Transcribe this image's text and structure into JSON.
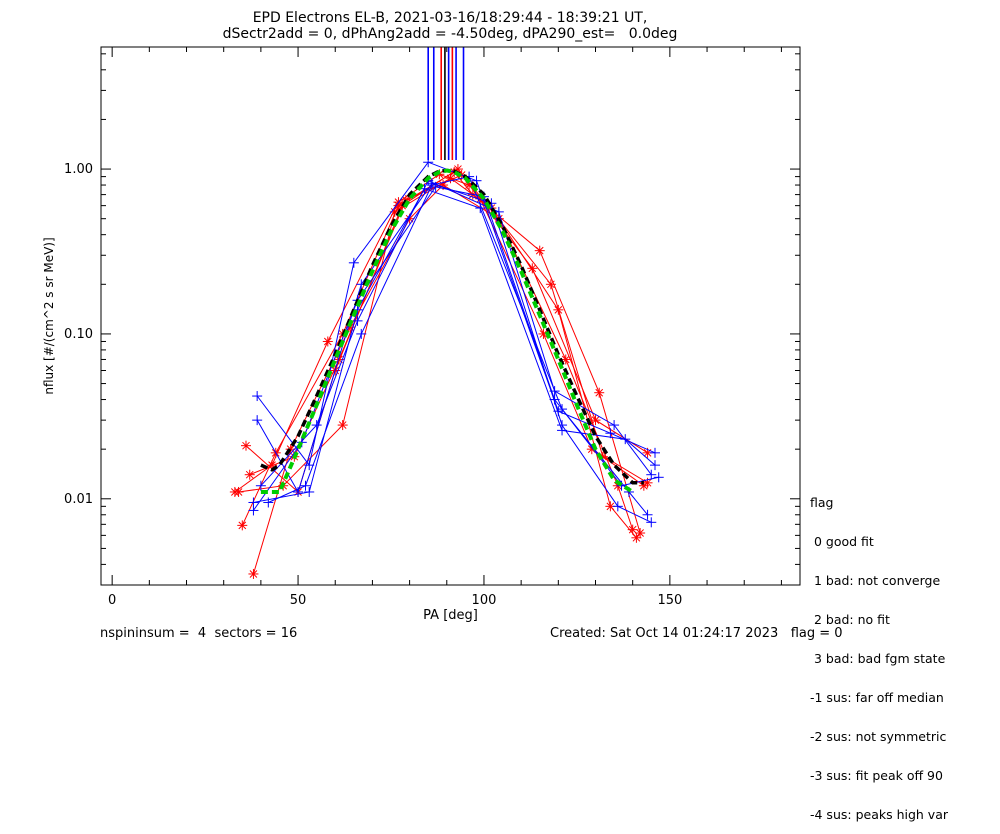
{
  "title_line1": "EPD Electrons EL-B, 2021-03-16/18:29:44 - 18:39:21 UT,",
  "title_line2": "dSectr2add = 0, dPhAng2add = -4.50deg, dPA290_est=   0.0deg",
  "footer": {
    "left": "nspininsum =  4  sectors = 16",
    "right": "Created: Sat Oct 14 01:24:17 2023   flag = 0"
  },
  "legend": {
    "title": "flag",
    "items": [
      " 0 good fit",
      " 1 bad: not converge",
      " 2 bad: no fit",
      " 3 bad: bad fgm state",
      "-1 sus: far off median",
      "-2 sus: not symmetric",
      "-3 sus: fit peak off 90",
      "-4 sus: peaks high var"
    ]
  },
  "colors": {
    "red": "#ff0000",
    "blue": "#0000ff",
    "black": "#000000",
    "green": "#00cc00"
  },
  "chart_data": {
    "type": "line",
    "xlabel": "PA [deg]",
    "ylabel": "nflux [#/(cm^2 s sr MeV)]",
    "xlim": [
      -3,
      185
    ],
    "ylim": [
      0.003,
      5.5
    ],
    "yscale": "log",
    "xticks": [
      0,
      50,
      100,
      150
    ],
    "yticks": [
      0.01,
      0.1,
      1.0
    ],
    "ytick_labels": [
      "0.01",
      "0.10",
      "1.00"
    ],
    "vlines": [
      {
        "x": 88.5,
        "color": "red"
      },
      {
        "x": 89.5,
        "color": "black"
      },
      {
        "x": 90.5,
        "color": "blue"
      },
      {
        "x": 91.5,
        "color": "red"
      },
      {
        "x": 92.5,
        "color": "blue"
      },
      {
        "x": 86.5,
        "color": "blue"
      },
      {
        "x": 94.5,
        "color": "blue"
      },
      {
        "x": 85,
        "color": "blue"
      }
    ],
    "series": [
      {
        "color": "red",
        "marker": "*",
        "x": [
          33,
          43,
          58,
          77,
          88,
          96,
          113,
          130,
          144
        ],
        "y": [
          0.011,
          0.016,
          0.09,
          0.63,
          0.93,
          0.8,
          0.25,
          0.03,
          0.019
        ]
      },
      {
        "color": "red",
        "marker": "*",
        "x": [
          35,
          44,
          62,
          77,
          92,
          97,
          115,
          131,
          142
        ],
        "y": [
          0.0069,
          0.019,
          0.1,
          0.6,
          0.96,
          0.7,
          0.32,
          0.044,
          0.0062
        ]
      },
      {
        "color": "red",
        "marker": "*",
        "x": [
          36,
          50,
          60,
          78,
          93,
          101,
          118,
          132,
          143
        ],
        "y": [
          0.021,
          0.011,
          0.06,
          0.6,
          1.0,
          0.6,
          0.2,
          0.018,
          0.012
        ]
      },
      {
        "color": "red",
        "marker": "*",
        "x": [
          34,
          46,
          62,
          76,
          91,
          102,
          120,
          134,
          141
        ],
        "y": [
          0.011,
          0.012,
          0.028,
          0.55,
          0.88,
          0.58,
          0.14,
          0.009,
          0.0058
        ]
      },
      {
        "color": "red",
        "marker": "*",
        "x": [
          38,
          48,
          64,
          80,
          89,
          104,
          122,
          136,
          140
        ],
        "y": [
          0.0035,
          0.02,
          0.11,
          0.5,
          0.8,
          0.5,
          0.07,
          0.012,
          0.0065
        ]
      },
      {
        "color": "red",
        "marker": "*",
        "x": [
          37,
          49,
          61,
          79,
          94,
          99,
          116,
          129,
          144
        ],
        "y": [
          0.014,
          0.018,
          0.07,
          0.65,
          0.92,
          0.66,
          0.1,
          0.02,
          0.0125
        ]
      },
      {
        "color": "blue",
        "marker": "+",
        "x": [
          39,
          53,
          65,
          85,
          98,
          120,
          134,
          146
        ],
        "y": [
          0.042,
          0.016,
          0.27,
          1.1,
          0.85,
          0.034,
          0.025,
          0.019
        ]
      },
      {
        "color": "blue",
        "marker": "+",
        "x": [
          39,
          50,
          67,
          86,
          102,
          121,
          136,
          145
        ],
        "y": [
          0.03,
          0.011,
          0.2,
          0.82,
          0.62,
          0.028,
          0.009,
          0.0072
        ]
      },
      {
        "color": "blue",
        "marker": "+",
        "x": [
          38,
          51,
          66,
          87,
          100,
          119,
          137,
          147
        ],
        "y": [
          0.0085,
          0.022,
          0.16,
          0.78,
          0.68,
          0.04,
          0.012,
          0.0135
        ]
      },
      {
        "color": "blue",
        "marker": "+",
        "x": [
          38,
          53,
          66,
          84,
          99,
          121,
          138,
          146
        ],
        "y": [
          0.0095,
          0.011,
          0.14,
          0.76,
          0.58,
          0.026,
          0.023,
          0.016
        ]
      },
      {
        "color": "blue",
        "marker": "+",
        "x": [
          40,
          55,
          66,
          85,
          104,
          119,
          135,
          145
        ],
        "y": [
          0.012,
          0.028,
          0.12,
          0.85,
          0.55,
          0.045,
          0.028,
          0.014
        ]
      },
      {
        "color": "blue",
        "marker": "+",
        "x": [
          42,
          52,
          67,
          86,
          96,
          121,
          139,
          144
        ],
        "y": [
          0.0095,
          0.012,
          0.1,
          0.8,
          0.9,
          0.035,
          0.011,
          0.008
        ]
      },
      {
        "color": "black",
        "marker": "",
        "dash": true,
        "width": 3.5,
        "x": [
          40,
          43,
          45,
          50,
          55,
          60,
          65,
          70,
          75,
          80,
          85,
          88,
          90,
          92,
          95,
          100,
          105,
          110,
          115,
          120,
          125,
          130,
          135,
          140,
          143
        ],
        "y": [
          0.016,
          0.015,
          0.016,
          0.024,
          0.042,
          0.075,
          0.14,
          0.26,
          0.45,
          0.7,
          0.9,
          0.97,
          0.98,
          0.97,
          0.9,
          0.7,
          0.45,
          0.26,
          0.14,
          0.075,
          0.042,
          0.024,
          0.016,
          0.0125,
          0.0125
        ]
      },
      {
        "color": "green",
        "marker": "",
        "dash": true,
        "width": 4,
        "x": [
          40,
          45,
          50,
          55,
          60,
          65,
          70,
          75,
          80,
          85,
          88,
          90,
          92,
          95,
          100,
          105,
          110,
          115,
          120,
          125,
          130,
          135,
          140
        ],
        "y": [
          0.011,
          0.011,
          0.02,
          0.037,
          0.07,
          0.13,
          0.24,
          0.42,
          0.66,
          0.88,
          0.96,
          0.98,
          0.96,
          0.88,
          0.66,
          0.42,
          0.24,
          0.13,
          0.07,
          0.037,
          0.02,
          0.013,
          0.011
        ]
      }
    ]
  }
}
